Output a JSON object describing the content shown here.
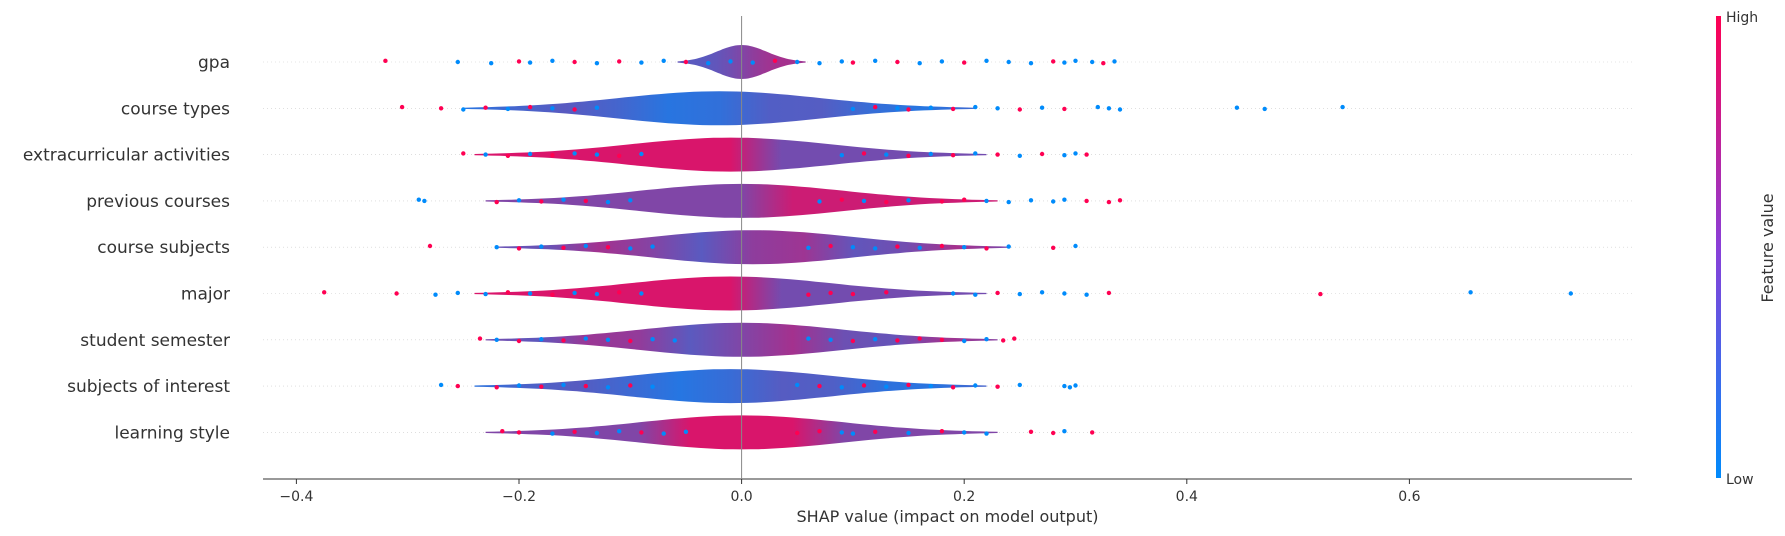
{
  "chart_data": {
    "type": "scatter",
    "subtype": "shap-violin-summary",
    "xlabel": "SHAP value (impact on model output)",
    "xlim": [
      -0.43,
      0.8
    ],
    "xticks": [
      -0.4,
      -0.2,
      0.0,
      0.2,
      0.4,
      0.6
    ],
    "xtick_labels": [
      "−0.4",
      "−0.2",
      "0.0",
      "0.2",
      "0.4",
      "0.6"
    ],
    "features": [
      {
        "name": "gpa",
        "min": -0.32,
        "max": 0.335,
        "spread": 0.05,
        "density_peak": 0.0,
        "value_profile": "mixed",
        "points": [
          -0.32,
          -0.255,
          -0.225,
          -0.2,
          -0.19,
          -0.17,
          -0.15,
          -0.13,
          -0.11,
          -0.09,
          -0.07,
          -0.05,
          -0.03,
          -0.01,
          0.01,
          0.03,
          0.05,
          0.07,
          0.09,
          0.1,
          0.12,
          0.14,
          0.16,
          0.18,
          0.2,
          0.22,
          0.24,
          0.26,
          0.28,
          0.29,
          0.3,
          0.315,
          0.325,
          0.335
        ],
        "hot": [
          -0.32,
          -0.2,
          -0.15,
          -0.11,
          -0.05,
          0.03,
          0.1,
          0.14,
          0.2,
          0.28,
          0.325
        ]
      },
      {
        "name": "course types",
        "min": -0.305,
        "max": 0.54,
        "spread": 0.2,
        "density_peak": -0.02,
        "value_profile": "low-center",
        "points": [
          -0.305,
          -0.27,
          -0.25,
          -0.23,
          -0.21,
          -0.19,
          -0.17,
          -0.15,
          -0.13,
          0.1,
          0.12,
          0.14,
          0.15,
          0.17,
          0.19,
          0.21,
          0.23,
          0.25,
          0.27,
          0.29,
          0.32,
          0.33,
          0.34,
          0.445,
          0.47,
          0.54
        ],
        "hot": [
          -0.305,
          -0.27,
          -0.23,
          -0.19,
          -0.15,
          0.12,
          0.15,
          0.19,
          0.25,
          0.29
        ]
      },
      {
        "name": "extracurricular activities",
        "min": -0.25,
        "max": 0.31,
        "spread": 0.2,
        "density_peak": -0.01,
        "value_profile": "high-left",
        "points": [
          -0.25,
          -0.23,
          -0.21,
          -0.19,
          -0.17,
          -0.15,
          -0.13,
          -0.11,
          -0.09,
          0.09,
          0.11,
          0.13,
          0.15,
          0.17,
          0.19,
          0.21,
          0.23,
          0.25,
          0.27,
          0.29,
          0.3,
          0.31
        ],
        "hot": [
          -0.25,
          -0.21,
          -0.17,
          -0.11,
          0.11,
          0.15,
          0.19,
          0.23,
          0.27,
          0.31
        ]
      },
      {
        "name": "previous courses",
        "min": -0.29,
        "max": 0.34,
        "spread": 0.2,
        "density_peak": 0.0,
        "value_profile": "high-right",
        "points": [
          -0.29,
          -0.285,
          -0.22,
          -0.2,
          -0.18,
          -0.16,
          -0.14,
          -0.12,
          -0.1,
          0.07,
          0.09,
          0.11,
          0.13,
          0.15,
          0.18,
          0.2,
          0.22,
          0.24,
          0.26,
          0.28,
          0.29,
          0.31,
          0.33,
          0.34
        ],
        "hot": [
          -0.22,
          -0.18,
          -0.14,
          0.09,
          0.13,
          0.18,
          0.2,
          0.31,
          0.33,
          0.34
        ]
      },
      {
        "name": "course subjects",
        "min": -0.28,
        "max": 0.3,
        "spread": 0.2,
        "density_peak": 0.01,
        "value_profile": "mixed",
        "points": [
          -0.28,
          -0.22,
          -0.2,
          -0.18,
          -0.16,
          -0.14,
          -0.12,
          -0.1,
          -0.08,
          0.06,
          0.08,
          0.1,
          0.12,
          0.14,
          0.16,
          0.18,
          0.2,
          0.22,
          0.24,
          0.28,
          0.3
        ],
        "hot": [
          -0.28,
          -0.2,
          -0.16,
          -0.12,
          0.08,
          0.14,
          0.18,
          0.22,
          0.28
        ]
      },
      {
        "name": "major",
        "min": -0.375,
        "max": 0.745,
        "spread": 0.2,
        "density_peak": -0.01,
        "value_profile": "high-left",
        "points": [
          -0.375,
          -0.31,
          -0.275,
          -0.255,
          -0.23,
          -0.21,
          -0.19,
          -0.17,
          -0.15,
          -0.13,
          -0.11,
          -0.09,
          0.06,
          0.08,
          0.1,
          0.13,
          0.19,
          0.21,
          0.23,
          0.25,
          0.27,
          0.29,
          0.31,
          0.33,
          0.52,
          0.655,
          0.745
        ],
        "hot": [
          -0.375,
          -0.31,
          -0.21,
          -0.17,
          -0.11,
          0.06,
          0.08,
          0.1,
          0.13,
          0.23,
          0.33,
          0.52
        ]
      },
      {
        "name": "student semester",
        "min": -0.235,
        "max": 0.245,
        "spread": 0.2,
        "density_peak": 0.0,
        "value_profile": "mixed",
        "points": [
          -0.235,
          -0.22,
          -0.2,
          -0.18,
          -0.16,
          -0.14,
          -0.12,
          -0.1,
          -0.08,
          -0.06,
          0.06,
          0.08,
          0.1,
          0.12,
          0.14,
          0.16,
          0.18,
          0.2,
          0.22,
          0.235,
          0.245
        ],
        "hot": [
          -0.235,
          -0.2,
          -0.16,
          -0.1,
          0.1,
          0.14,
          0.16,
          0.18,
          0.235,
          0.245
        ]
      },
      {
        "name": "subjects of interest",
        "min": -0.27,
        "max": 0.3,
        "spread": 0.2,
        "density_peak": -0.01,
        "value_profile": "low-center",
        "points": [
          -0.27,
          -0.255,
          -0.22,
          -0.2,
          -0.18,
          -0.16,
          -0.14,
          -0.12,
          -0.1,
          -0.08,
          0.05,
          0.07,
          0.09,
          0.11,
          0.13,
          0.15,
          0.17,
          0.19,
          0.21,
          0.23,
          0.25,
          0.29,
          0.295,
          0.3
        ],
        "hot": [
          -0.255,
          -0.22,
          -0.18,
          -0.14,
          -0.1,
          0.07,
          0.11,
          0.15,
          0.19,
          0.23
        ]
      },
      {
        "name": "learning style",
        "min": -0.215,
        "max": 0.315,
        "spread": 0.2,
        "density_peak": 0.0,
        "value_profile": "high-center",
        "points": [
          -0.215,
          -0.2,
          -0.17,
          -0.15,
          -0.13,
          -0.11,
          -0.09,
          -0.07,
          -0.05,
          0.05,
          0.07,
          0.09,
          0.1,
          0.12,
          0.15,
          0.18,
          0.2,
          0.22,
          0.26,
          0.28,
          0.29,
          0.315
        ],
        "hot": [
          -0.215,
          -0.2,
          -0.15,
          -0.09,
          0.05,
          0.07,
          0.12,
          0.18,
          0.26,
          0.28,
          0.315
        ]
      }
    ],
    "colorbar": {
      "label": "Feature value",
      "high_label": "High",
      "low_label": "Low",
      "high_color": "#ff0052",
      "low_color": "#008bfb"
    },
    "zero_line": 0.0,
    "grid": false,
    "legend": "colorbar-right"
  }
}
